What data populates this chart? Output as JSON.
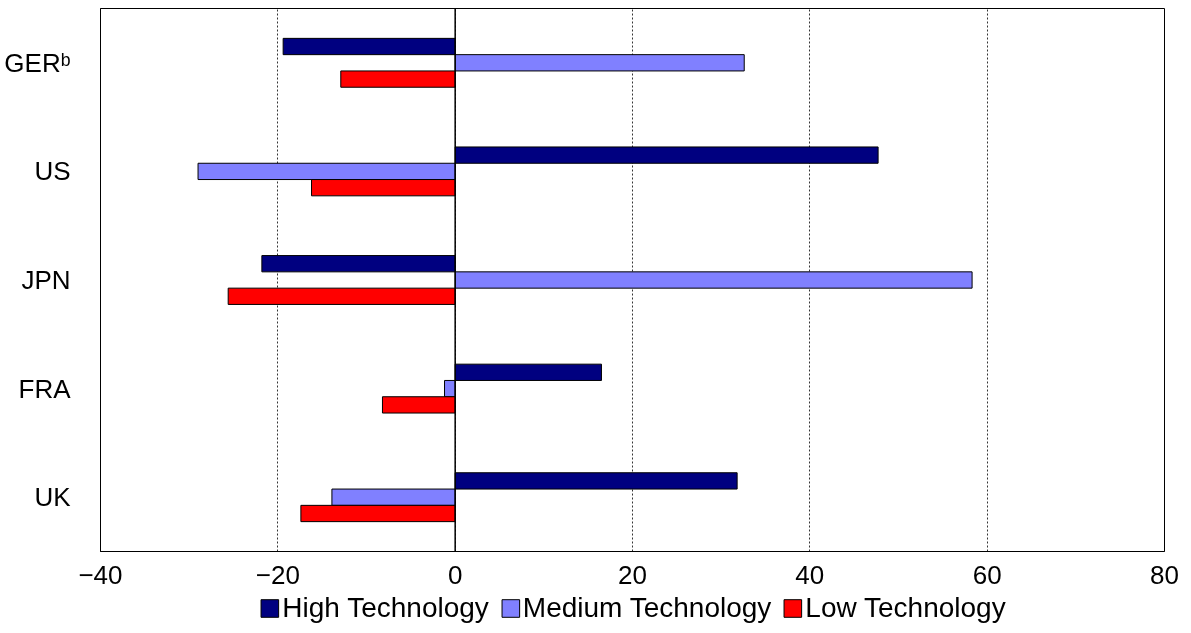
{
  "chart_data": {
    "type": "bar",
    "orientation": "horizontal",
    "categories": [
      "GERᵇ",
      "US",
      "JPN",
      "FRA",
      "UK"
    ],
    "series": [
      {
        "name": "High Technology",
        "color": "#000080",
        "values": [
          -19.4,
          47.7,
          -21.8,
          16.5,
          31.8
        ]
      },
      {
        "name": "Medium Technology",
        "color": "#8080ff",
        "values": [
          32.6,
          -29.0,
          58.3,
          -1.2,
          -13.9
        ]
      },
      {
        "name": "Low Technology",
        "color": "#ff0000",
        "values": [
          -12.9,
          -16.2,
          -25.6,
          -8.2,
          -17.4
        ]
      }
    ],
    "xlim": [
      -40,
      80
    ],
    "xticks": [
      -40,
      -20,
      0,
      20,
      40,
      60,
      80
    ],
    "grid": "x",
    "legend": "bottom",
    "ref_lines": [
      {
        "axis": "x",
        "value": 0,
        "color": "#000000"
      }
    ]
  }
}
